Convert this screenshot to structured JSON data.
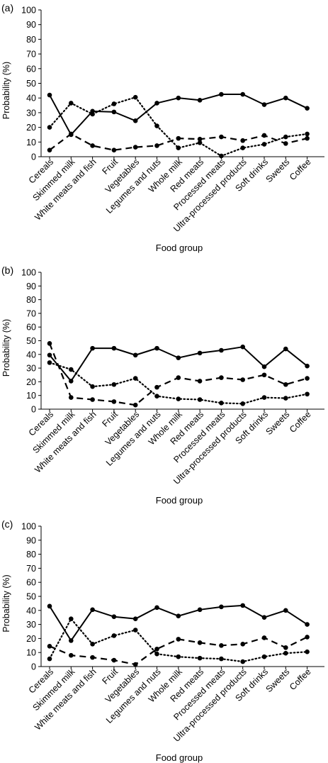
{
  "chart_data": [
    {
      "panel_label": "(a)",
      "type": "line",
      "ylabel": "Probability (%)",
      "xlabel": "Food group",
      "ylim": [
        0,
        100
      ],
      "yticks": [
        0,
        10,
        20,
        30,
        40,
        50,
        60,
        70,
        80,
        90,
        100
      ],
      "grid": false,
      "categories": [
        "Cereals",
        "Skimmed milk",
        "White meats and fish",
        "Fruit",
        "Vegetables",
        "Legumes and nuts",
        "Whole milk",
        "Red meats",
        "Processed meats",
        "Ultra-processed products",
        "Soft drinks",
        "Sweets",
        "Coffee"
      ],
      "series": [
        {
          "style": "solid",
          "values": [
            42,
            15,
            31,
            30.5,
            24.5,
            36.5,
            40,
            38.5,
            42.5,
            42.5,
            35.5,
            40,
            33
          ]
        },
        {
          "style": "dotted",
          "values": [
            20,
            36.5,
            29,
            36,
            40.5,
            21,
            6,
            9.5,
            0.5,
            6,
            8.5,
            13.5,
            15.5
          ]
        },
        {
          "style": "dashed",
          "values": [
            4.5,
            15.5,
            7.5,
            4.5,
            6.5,
            7.5,
            12.5,
            12,
            13.5,
            11,
            14.5,
            9,
            12.5
          ]
        }
      ]
    },
    {
      "panel_label": "(b)",
      "type": "line",
      "ylabel": "Probability (%)",
      "xlabel": "Food group",
      "ylim": [
        0,
        100
      ],
      "yticks": [
        0,
        10,
        20,
        30,
        40,
        50,
        60,
        70,
        80,
        90,
        100
      ],
      "grid": false,
      "categories": [
        "Cereals",
        "Skimmed milk",
        "White meats and fish",
        "Fruit",
        "Vegetables",
        "Legumes and nuts",
        "Whole milk",
        "Red meats",
        "Processed meats",
        "Ultra-processed products",
        "Soft drinks",
        "Sweets",
        "Coffee"
      ],
      "series": [
        {
          "style": "solid",
          "values": [
            39.5,
            20.5,
            44.5,
            44.5,
            39.5,
            44.5,
            37.5,
            41,
            43,
            45.5,
            31,
            44,
            31.5
          ]
        },
        {
          "style": "dotted",
          "values": [
            34,
            29,
            16.5,
            18,
            22.5,
            9.5,
            7.5,
            7,
            4.5,
            4,
            8.5,
            8,
            11
          ]
        },
        {
          "style": "dashed",
          "values": [
            48,
            8.5,
            7,
            5.5,
            3,
            16,
            23,
            20.5,
            23,
            21.5,
            25,
            18,
            22.5
          ]
        }
      ]
    },
    {
      "panel_label": "(c)",
      "type": "line",
      "ylabel": "Probability (%)",
      "xlabel": "Food group",
      "ylim": [
        0,
        100
      ],
      "yticks": [
        0,
        10,
        20,
        30,
        40,
        50,
        60,
        70,
        80,
        90,
        100
      ],
      "grid": false,
      "categories": [
        "Cereals",
        "Skimmed milk",
        "White meats and fish",
        "Fruit",
        "Vegetables",
        "Legumes and nuts",
        "Whole milk",
        "Red meats",
        "Processed meats",
        "Ultra-processed products",
        "Soft drinks",
        "Sweets",
        "Coffee"
      ],
      "series": [
        {
          "style": "solid",
          "values": [
            43,
            18.5,
            40.5,
            35.5,
            34,
            42,
            36,
            40.5,
            42.5,
            43.5,
            35,
            40,
            30
          ]
        },
        {
          "style": "dotted",
          "values": [
            5.5,
            34,
            16,
            22,
            26,
            9,
            7,
            6,
            5.5,
            3.5,
            7,
            9.5,
            10.5
          ]
        },
        {
          "style": "dashed",
          "values": [
            14.5,
            8,
            6.5,
            4.5,
            1.5,
            12.5,
            19.5,
            17,
            15,
            16,
            20.5,
            13.5,
            21
          ]
        }
      ]
    }
  ]
}
